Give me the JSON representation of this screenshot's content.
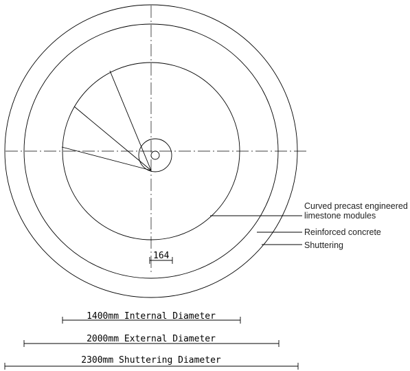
{
  "labels": {
    "modules_line1": "Curved precast engineered",
    "modules_line2": "limestone modules",
    "concrete": "Reinforced concrete",
    "shuttering": "Shuttering"
  },
  "dimensions": {
    "small_gap": "164",
    "internal": "1400mm Internal Diameter",
    "external": "2000mm External Diameter",
    "shuttering": "2300mm Shuttering Diameter"
  }
}
